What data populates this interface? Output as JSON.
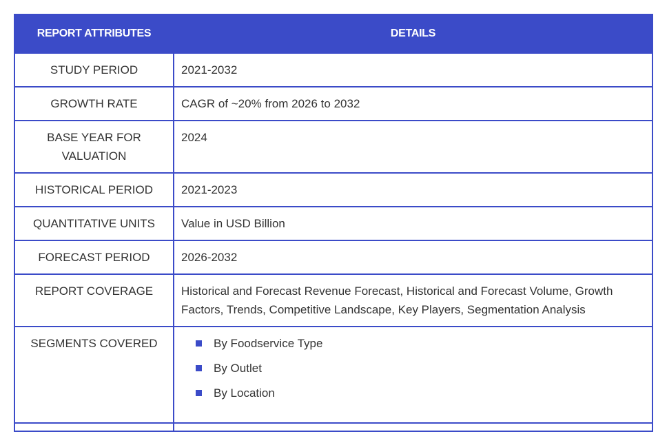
{
  "header": {
    "col1": "REPORT ATTRIBUTES",
    "col2": "DETAILS"
  },
  "rows": [
    {
      "attribute": "STUDY PERIOD",
      "detail": "2021-2032"
    },
    {
      "attribute": "GROWTH RATE",
      "detail": "CAGR of ~20% from 2026 to 2032"
    },
    {
      "attribute": "BASE YEAR FOR VALUATION",
      "detail": "2024"
    },
    {
      "attribute": "HISTORICAL PERIOD",
      "detail": "2021-2023"
    },
    {
      "attribute": "QUANTITATIVE UNITS",
      "detail": "Value in USD Billion"
    },
    {
      "attribute": "FORECAST PERIOD",
      "detail": "2026-2032"
    },
    {
      "attribute": "REPORT COVERAGE",
      "detail": "Historical and Forecast Revenue Forecast, Historical and Forecast Volume, Growth Factors, Trends, Competitive Landscape, Key Players, Segmentation Analysis"
    },
    {
      "attribute": "SEGMENTS COVERED",
      "items": [
        "By Foodservice Type",
        "By Outlet",
        "By Location"
      ]
    }
  ],
  "colors": {
    "header_bg": "#3b4bc8",
    "border": "#3b4bc8",
    "bullet": "#3b4bc8"
  },
  "icons": {
    "bullet": "square-bullet-icon"
  }
}
